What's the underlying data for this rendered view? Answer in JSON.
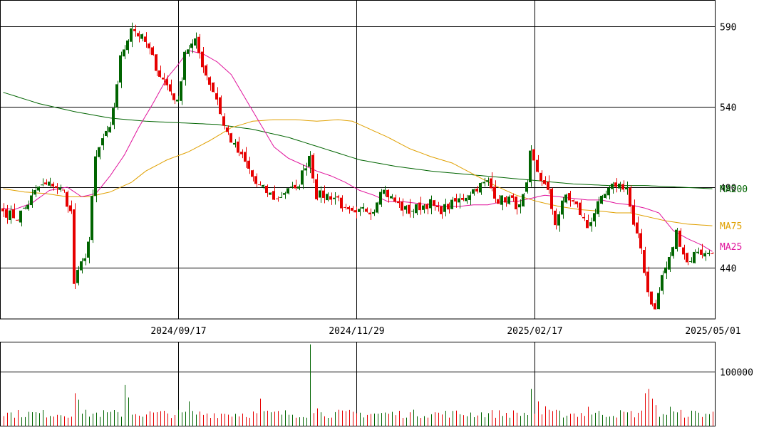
{
  "colors": {
    "up": "#006400",
    "down": "#e60000",
    "ma25": "#e0139c",
    "ma75": "#e0a000",
    "ma200": "#006400",
    "grid": "#000000",
    "frame": "#000000",
    "text": "#000000"
  },
  "chart_data": [
    {
      "type": "candlestick",
      "title": "",
      "ylim": [
        408,
        606
      ],
      "y_ticks": [
        {
          "value": 590,
          "label": "590"
        },
        {
          "value": 540,
          "label": "540"
        },
        {
          "value": 490,
          "label": "490"
        },
        {
          "value": 440,
          "label": "440"
        }
      ],
      "x_ticks": [
        {
          "index": 49,
          "label": "2024/09/17"
        },
        {
          "index": 99,
          "label": "2024/11/29"
        },
        {
          "index": 149,
          "label": "2025/02/17"
        },
        {
          "index": 199,
          "label": "2025/05/01"
        }
      ],
      "series": [
        {
          "name": "MA25",
          "key": "ma25"
        },
        {
          "name": "MA75",
          "key": "ma75"
        },
        {
          "name": "MA200",
          "key": "ma200"
        }
      ],
      "legend_labels": {
        "ma25": "MA25",
        "ma75": "MA75",
        "ma200": "MA200"
      },
      "anchors": {
        "close": [
          [
            0,
            475
          ],
          [
            4,
            471
          ],
          [
            7,
            480
          ],
          [
            10,
            490
          ],
          [
            14,
            492
          ],
          [
            17,
            487
          ],
          [
            19,
            474
          ],
          [
            20,
            430
          ],
          [
            23,
            448
          ],
          [
            24,
            456
          ],
          [
            26,
            508
          ],
          [
            28,
            520
          ],
          [
            30,
            525
          ],
          [
            33,
            570
          ],
          [
            36,
            590
          ],
          [
            38,
            585
          ],
          [
            40,
            580
          ],
          [
            44,
            560
          ],
          [
            47,
            550
          ],
          [
            49,
            542
          ],
          [
            51,
            575
          ],
          [
            54,
            580
          ],
          [
            57,
            560
          ],
          [
            60,
            545
          ],
          [
            62,
            528
          ],
          [
            65,
            515
          ],
          [
            68,
            505
          ],
          [
            71,
            492
          ],
          [
            74,
            487
          ],
          [
            77,
            482
          ],
          [
            80,
            490
          ],
          [
            82,
            487
          ],
          [
            86,
            510
          ],
          [
            88,
            485
          ],
          [
            91,
            485
          ],
          [
            94,
            483
          ],
          [
            96,
            475
          ],
          [
            99,
            472
          ],
          [
            101,
            476
          ],
          [
            104,
            476
          ],
          [
            106,
            490
          ],
          [
            109,
            483
          ],
          [
            112,
            477
          ],
          [
            114,
            475
          ],
          [
            117,
            478
          ],
          [
            120,
            480
          ],
          [
            122,
            475
          ],
          [
            125,
            478
          ],
          [
            128,
            482
          ],
          [
            130,
            485
          ],
          [
            133,
            490
          ],
          [
            136,
            493
          ],
          [
            139,
            482
          ],
          [
            142,
            483
          ],
          [
            145,
            477
          ],
          [
            147,
            490
          ],
          [
            148,
            510
          ],
          [
            150,
            500
          ],
          [
            153,
            486
          ],
          [
            155,
            468
          ],
          [
            158,
            485
          ],
          [
            161,
            478
          ],
          [
            164,
            465
          ],
          [
            166,
            475
          ],
          [
            169,
            485
          ],
          [
            172,
            492
          ],
          [
            175,
            490
          ],
          [
            177,
            465
          ],
          [
            179,
            452
          ],
          [
            181,
            425
          ],
          [
            183,
            413
          ],
          [
            185,
            435
          ],
          [
            187,
            445
          ],
          [
            189,
            462
          ],
          [
            192,
            443
          ],
          [
            195,
            451
          ],
          [
            197,
            448
          ],
          [
            199,
            451
          ]
        ],
        "ma25": [
          [
            0,
            477
          ],
          [
            3,
            476
          ],
          [
            8,
            480
          ],
          [
            13,
            488
          ],
          [
            18,
            490
          ],
          [
            22,
            484
          ],
          [
            26,
            486
          ],
          [
            30,
            497
          ],
          [
            34,
            510
          ],
          [
            38,
            527
          ],
          [
            42,
            542
          ],
          [
            46,
            558
          ],
          [
            49,
            566
          ],
          [
            52,
            575
          ],
          [
            56,
            573
          ],
          [
            60,
            568
          ],
          [
            64,
            560
          ],
          [
            68,
            545
          ],
          [
            72,
            530
          ],
          [
            76,
            515
          ],
          [
            80,
            508
          ],
          [
            84,
            504
          ],
          [
            88,
            500
          ],
          [
            92,
            497
          ],
          [
            96,
            493
          ],
          [
            100,
            488
          ],
          [
            104,
            485
          ],
          [
            108,
            481
          ],
          [
            112,
            481
          ],
          [
            116,
            480
          ],
          [
            120,
            479
          ],
          [
            124,
            478
          ],
          [
            128,
            478
          ],
          [
            132,
            479
          ],
          [
            136,
            479
          ],
          [
            140,
            481
          ],
          [
            144,
            481
          ],
          [
            148,
            483
          ],
          [
            152,
            485
          ],
          [
            156,
            484
          ],
          [
            160,
            483
          ],
          [
            164,
            482
          ],
          [
            168,
            482
          ],
          [
            172,
            480
          ],
          [
            176,
            479
          ],
          [
            180,
            477
          ],
          [
            184,
            474
          ],
          [
            188,
            463
          ],
          [
            192,
            458
          ],
          [
            196,
            454
          ],
          [
            199,
            450
          ]
        ],
        "ma75": [
          [
            0,
            489
          ],
          [
            6,
            487
          ],
          [
            12,
            486
          ],
          [
            18,
            484
          ],
          [
            24,
            484
          ],
          [
            30,
            487
          ],
          [
            36,
            493
          ],
          [
            40,
            500
          ],
          [
            46,
            507
          ],
          [
            52,
            512
          ],
          [
            58,
            519
          ],
          [
            64,
            527
          ],
          [
            70,
            531
          ],
          [
            76,
            532
          ],
          [
            82,
            532
          ],
          [
            88,
            531
          ],
          [
            94,
            532
          ],
          [
            98,
            531
          ],
          [
            102,
            527
          ],
          [
            108,
            521
          ],
          [
            114,
            514
          ],
          [
            120,
            509
          ],
          [
            126,
            505
          ],
          [
            132,
            498
          ],
          [
            138,
            491
          ],
          [
            144,
            485
          ],
          [
            150,
            481
          ],
          [
            156,
            478
          ],
          [
            162,
            476
          ],
          [
            168,
            475
          ],
          [
            172,
            474
          ],
          [
            176,
            474
          ],
          [
            180,
            472
          ],
          [
            186,
            469
          ],
          [
            192,
            467
          ],
          [
            199,
            466
          ]
        ],
        "ma200": [
          [
            0,
            549
          ],
          [
            10,
            542
          ],
          [
            20,
            537
          ],
          [
            30,
            533
          ],
          [
            40,
            531
          ],
          [
            50,
            530
          ],
          [
            60,
            529
          ],
          [
            70,
            526
          ],
          [
            80,
            521
          ],
          [
            90,
            514
          ],
          [
            100,
            507
          ],
          [
            110,
            503
          ],
          [
            120,
            500
          ],
          [
            130,
            498
          ],
          [
            140,
            496
          ],
          [
            150,
            494
          ],
          [
            160,
            492
          ],
          [
            170,
            491
          ],
          [
            180,
            491
          ],
          [
            190,
            490
          ],
          [
            199,
            489
          ]
        ]
      },
      "volume": {
        "type": "bar",
        "ylim": [
          0,
          155000
        ],
        "y_ticks": [
          {
            "value": 100000,
            "label": "100000"
          }
        ],
        "base": 26000,
        "spikes": [
          [
            20,
            60000
          ],
          [
            21,
            48000
          ],
          [
            34,
            75000
          ],
          [
            35,
            52000
          ],
          [
            52,
            45000
          ],
          [
            72,
            50000
          ],
          [
            86,
            150000
          ],
          [
            88,
            32000
          ],
          [
            148,
            68000
          ],
          [
            150,
            45000
          ],
          [
            152,
            36000
          ],
          [
            164,
            35000
          ],
          [
            180,
            60000
          ],
          [
            181,
            68000
          ],
          [
            182,
            50000
          ],
          [
            183,
            38000
          ],
          [
            187,
            35000
          ]
        ]
      }
    }
  ]
}
